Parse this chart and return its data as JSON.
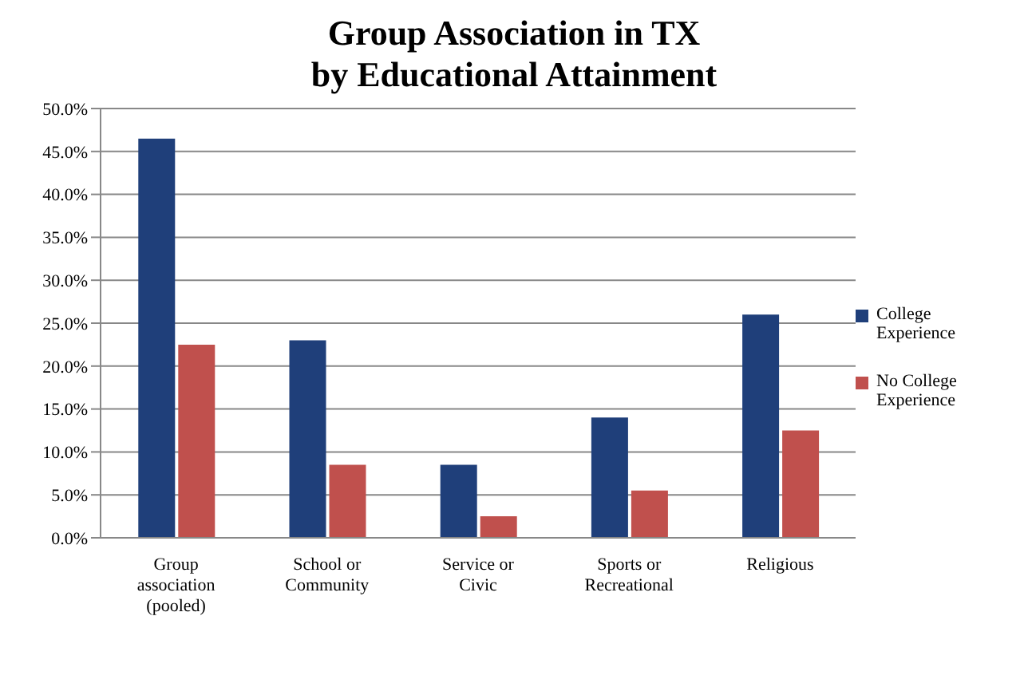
{
  "chart_data": {
    "type": "bar",
    "title": "Group Association in TX\nby Educational Attainment",
    "categories": [
      "Group\nassociation\n(pooled)",
      "School or\nCommunity",
      "Service or\nCivic",
      "Sports or\nRecreational",
      "Religious"
    ],
    "series": [
      {
        "name": "College Experience",
        "color": "#1f3f7a",
        "values": [
          46.5,
          23,
          8.5,
          14,
          26
        ]
      },
      {
        "name": "No College Experience",
        "color": "#c0504d",
        "values": [
          22.5,
          8.5,
          2.5,
          5.5,
          12.5
        ]
      }
    ],
    "ylim": [
      0,
      50
    ],
    "yticks": [
      {
        "value": 0,
        "label": "0.0%"
      },
      {
        "value": 5,
        "label": "5.0%"
      },
      {
        "value": 10,
        "label": "10.0%"
      },
      {
        "value": 15,
        "label": "15.0%"
      },
      {
        "value": 20,
        "label": "20.0%"
      },
      {
        "value": 25,
        "label": "25.0%"
      },
      {
        "value": 30,
        "label": "30.0%"
      },
      {
        "value": 35,
        "label": "35.0%"
      },
      {
        "value": 40,
        "label": "40.0%"
      },
      {
        "value": 45,
        "label": "45.0%"
      },
      {
        "value": 50,
        "label": "50.0%"
      }
    ],
    "grid": "y",
    "legend": "right"
  }
}
